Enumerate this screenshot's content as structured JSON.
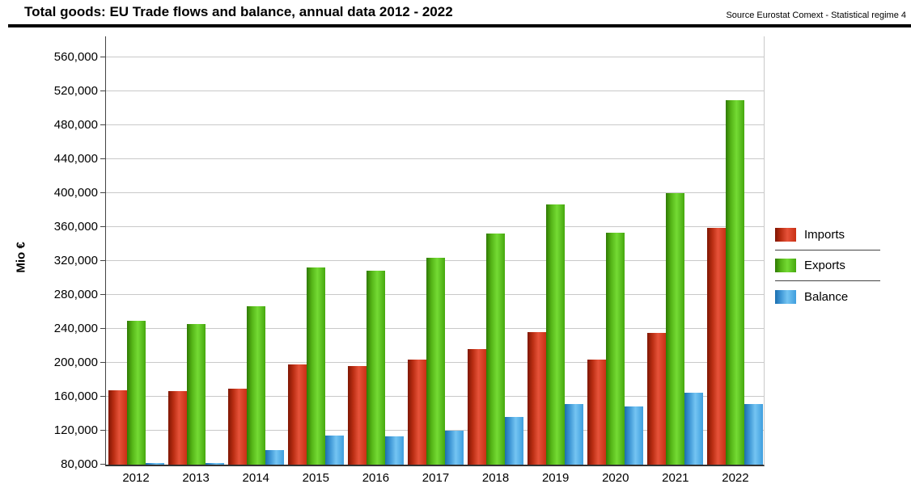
{
  "header": {
    "title": "Total goods: EU Trade flows and balance, annual data 2012 - 2022",
    "source": "Source Eurostat Comext  - Statistical regime 4"
  },
  "chart_data": {
    "type": "bar",
    "title": "Total goods: EU Trade flows and balance, annual data 2012 - 2022",
    "xlabel": "",
    "ylabel": "Mio €",
    "ylim": [
      80000,
      560000
    ],
    "ytick_step": 40000,
    "grid": true,
    "legend_position": "right",
    "categories": [
      "2012",
      "2013",
      "2014",
      "2015",
      "2016",
      "2017",
      "2018",
      "2019",
      "2020",
      "2021",
      "2022"
    ],
    "series": [
      {
        "name": "Imports",
        "color": "#d43a1e",
        "values": [
          168000,
          167000,
          170000,
          198000,
          196000,
          204000,
          216000,
          236000,
          204000,
          235000,
          359000
        ]
      },
      {
        "name": "Exports",
        "color": "#5fc421",
        "values": [
          250000,
          246000,
          267000,
          312000,
          309000,
          324000,
          352000,
          387000,
          353000,
          400000,
          510000
        ]
      },
      {
        "name": "Balance",
        "color": "#4aa4e4",
        "values": [
          82000,
          82000,
          97000,
          114000,
          113000,
          120000,
          136000,
          151000,
          149000,
          165000,
          151000
        ]
      }
    ],
    "yticks": [
      "560,000",
      "520,000",
      "480,000",
      "440,000",
      "400,000",
      "360,000",
      "320,000",
      "280,000",
      "240,000",
      "200,000",
      "160,000",
      "120,000",
      "80,000"
    ]
  },
  "legend": {
    "items": [
      {
        "label": "Imports"
      },
      {
        "label": "Exports"
      },
      {
        "label": "Balance"
      }
    ]
  }
}
